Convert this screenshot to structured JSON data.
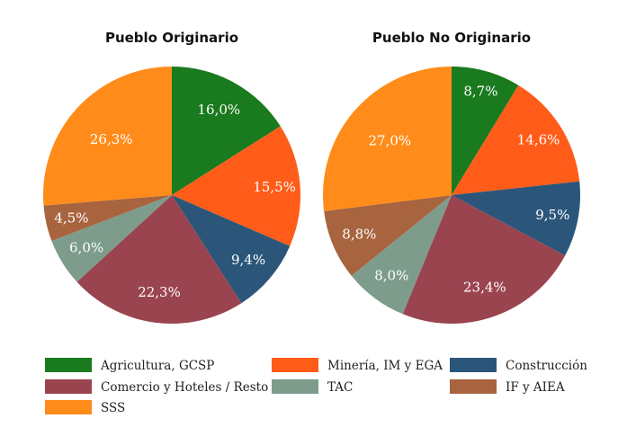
{
  "chart_data": [
    {
      "type": "pie",
      "title": "Pueblo Originario",
      "categories": [
        "Agricultura, GCSP",
        "Minería, IM y EGA",
        "Construcción",
        "Comercio y Hoteles / Resto",
        "TAC",
        "IF y AIEA",
        "SSS"
      ],
      "values": [
        16.0,
        15.5,
        9.4,
        22.3,
        6.0,
        4.5,
        26.3
      ],
      "labels": [
        "16,0%",
        "15,5%",
        "9,4%",
        "22,3%",
        "6,0%",
        "4,5%",
        "26,3%"
      ]
    },
    {
      "type": "pie",
      "title": "Pueblo No Originario",
      "categories": [
        "Agricultura, GCSP",
        "Minería, IM y EGA",
        "Construcción",
        "Comercio y Hoteles / Resto",
        "TAC",
        "IF y AIEA",
        "SSS"
      ],
      "values": [
        8.7,
        14.6,
        9.5,
        23.4,
        8.0,
        8.8,
        27.0
      ],
      "labels": [
        "8,7%",
        "14,6%",
        "9,5%",
        "23,4%",
        "8,0%",
        "8,8%",
        "27,0%"
      ]
    }
  ],
  "legend": {
    "placement": "bottom",
    "items": [
      {
        "label": "Agricultura, GCSP",
        "color": "#1a7a1e"
      },
      {
        "label": "Minería, IM y EGA",
        "color": "#ff5c1a"
      },
      {
        "label": "Construcción",
        "color": "#2b567a"
      },
      {
        "label": "Comercio y Hoteles / Resto",
        "color": "#9a4450"
      },
      {
        "label": "TAC",
        "color": "#7d9c8c"
      },
      {
        "label": "IF y AIEA",
        "color": "#a8643e"
      },
      {
        "label": "SSS",
        "color": "#ff8c1a"
      }
    ]
  }
}
